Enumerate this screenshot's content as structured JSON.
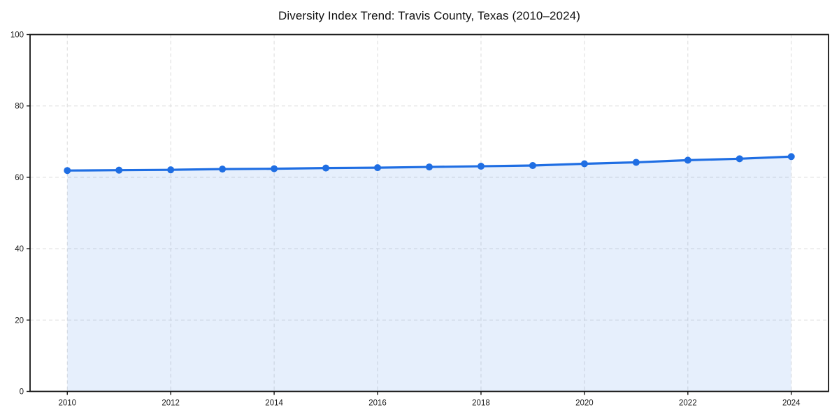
{
  "chart_data": {
    "type": "line",
    "title": "Diversity Index Trend: Travis County, Texas (2010–2024)",
    "xlabel": "",
    "ylabel": "",
    "x": [
      2010,
      2011,
      2012,
      2013,
      2014,
      2015,
      2016,
      2017,
      2018,
      2019,
      2020,
      2021,
      2022,
      2023,
      2024
    ],
    "values": [
      61.9,
      62.0,
      62.1,
      62.3,
      62.4,
      62.6,
      62.7,
      62.9,
      63.1,
      63.3,
      63.8,
      64.2,
      64.8,
      65.2,
      65.8
    ],
    "xlim": [
      2009.28,
      2024.72
    ],
    "ylim": [
      0,
      100
    ],
    "xticks": [
      2010,
      2012,
      2014,
      2016,
      2018,
      2020,
      2022,
      2024
    ],
    "yticks": [
      0,
      20,
      40,
      60,
      80,
      100
    ],
    "grid": true,
    "grid_style": "dashed",
    "legend": false,
    "area_fill": true,
    "markers": true,
    "colors": {
      "line": "#1f6ee3",
      "marker": "#1f6ee3",
      "fill": "rgba(31,110,227,0.11)",
      "grid": "#dcdcdc",
      "spine": "#141414",
      "tick_label": "#1a1a1a",
      "title": "#111111",
      "background": "#ffffff"
    }
  }
}
